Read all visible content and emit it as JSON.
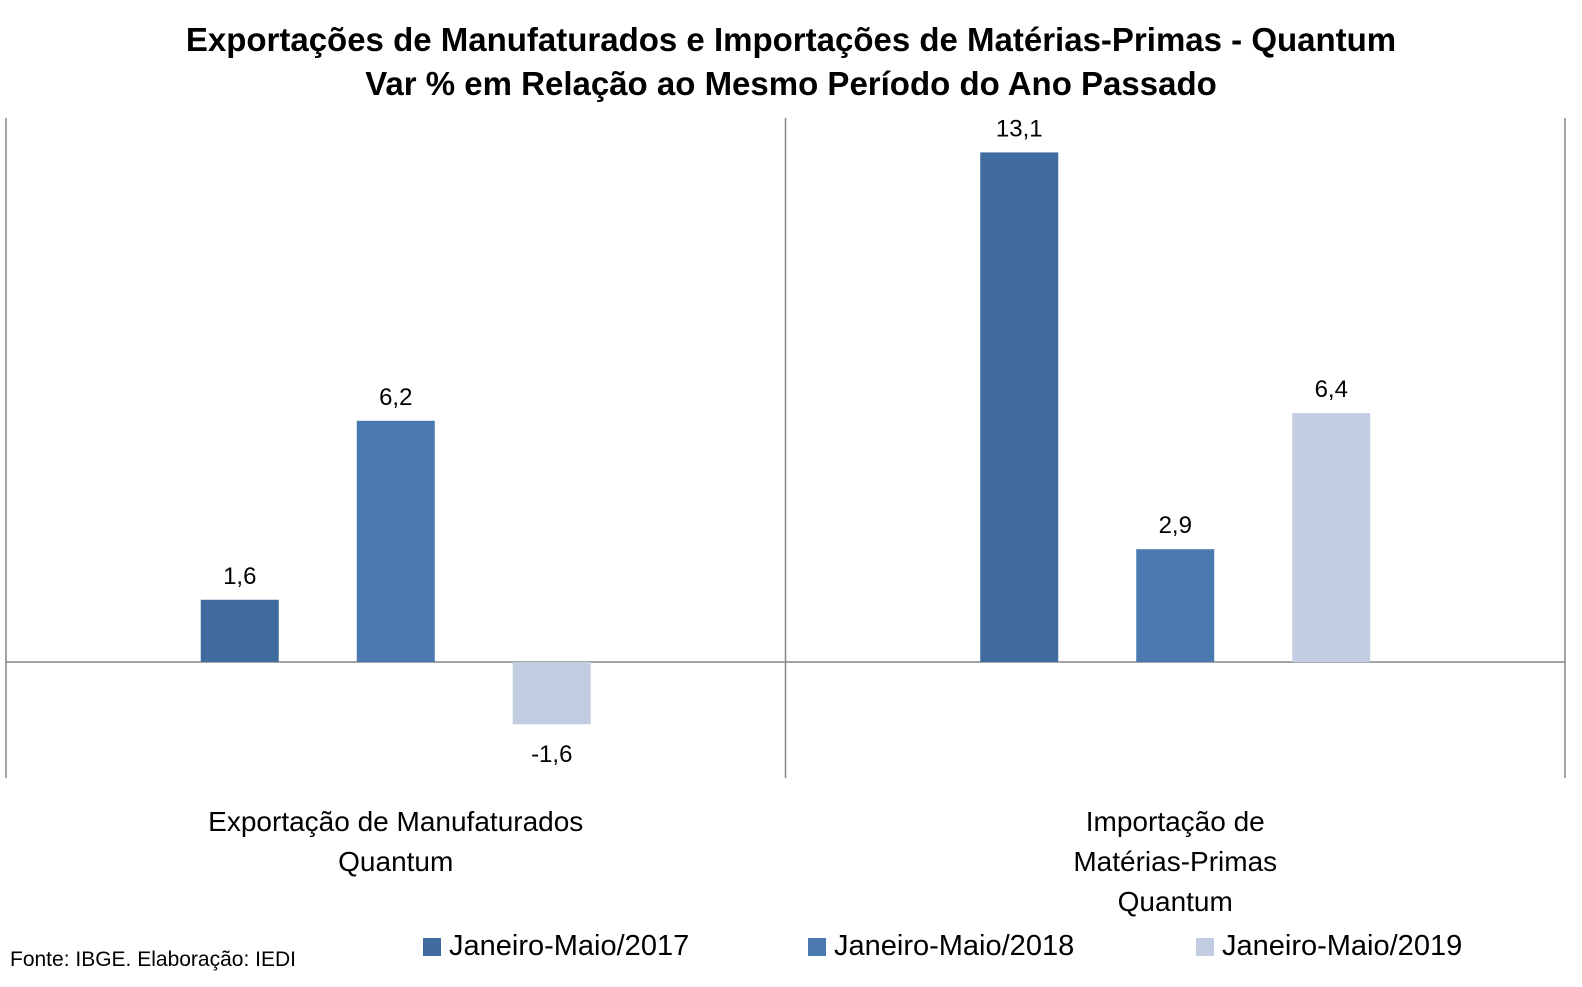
{
  "chart_data": {
    "type": "bar",
    "title": "Exportações de Manufaturados e Importações de Matérias-Primas - Quantum",
    "subtitle": "Var % em Relação ao Mesmo Período do Ano Passado",
    "categories": [
      [
        "Exportação de Manufaturados",
        "Quantum"
      ],
      [
        "Importação de",
        "Matérias-Primas",
        "Quantum"
      ]
    ],
    "series": [
      {
        "name": "Janeiro-Maio/2017",
        "color": "#3F6B9E",
        "values": [
          1.6,
          13.1
        ],
        "labels": [
          "1,6",
          "13,1"
        ]
      },
      {
        "name": "Janeiro-Maio/2018",
        "color": "#4A78B1",
        "values": [
          6.2,
          2.9
        ],
        "labels": [
          "6,2",
          "2,9"
        ]
      },
      {
        "name": "Janeiro-Maio/2019",
        "color": "#C3CDE2",
        "values": [
          -1.6,
          6.4
        ],
        "labels": [
          "-1,6",
          "6,4"
        ]
      }
    ],
    "ylim": [
      -3.0,
      14.0
    ],
    "xlabel": "",
    "ylabel": "",
    "grid": false,
    "legend_position": "bottom"
  },
  "source": "Fonte: IBGE. Elaboração: IEDI"
}
